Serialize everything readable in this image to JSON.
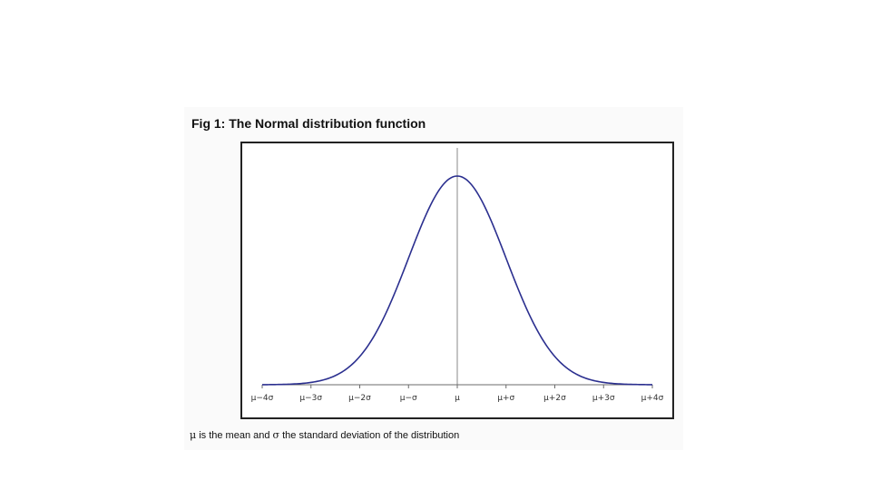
{
  "figure": {
    "title": "Fig 1: The Normal distribution function",
    "caption": {
      "mu_symbol": "μ",
      "part1": " is the mean and ",
      "sigma_symbol": "σ",
      "part2": " the standard deviation of the distribution"
    }
  },
  "chart_data": {
    "type": "line",
    "title": "Fig 1: The Normal distribution function",
    "xlabel": "",
    "ylabel": "",
    "function": "normal-pdf",
    "x_range_sd": [
      -4,
      4
    ],
    "tick_values_sd": [
      -4,
      -3,
      -2,
      -1,
      0,
      1,
      2,
      3,
      4
    ],
    "tick_labels": [
      "μ−4σ",
      "μ−3σ",
      "μ−2σ",
      "μ−σ",
      "μ",
      "μ+σ",
      "μ+2σ",
      "μ+3σ",
      "μ+4σ"
    ],
    "center_line_at_sd": 0,
    "grid": false,
    "legend": "none",
    "colors": {
      "curve": "#2b2f8f",
      "center_line": "#8a8a8a",
      "axis": "#6b6b6b",
      "frame": "#222222"
    }
  }
}
